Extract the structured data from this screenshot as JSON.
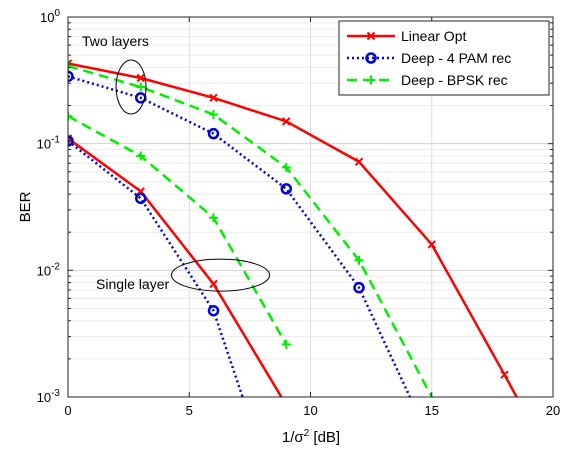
{
  "chart_data": {
    "type": "line",
    "xlabel": "1/σ² [dB]",
    "xlabel_parts": {
      "prefix": "1/σ",
      "sup": "2",
      "suffix": " [dB]"
    },
    "ylabel": "BER",
    "xlim": [
      0,
      20
    ],
    "ylim": [
      0.001,
      1
    ],
    "yscale": "log",
    "grid": true,
    "legend_position": "top-right",
    "x_ticks": [
      0,
      5,
      10,
      15,
      20
    ],
    "y_ticks": [
      {
        "value": 1,
        "base": "10",
        "exp": "0"
      },
      {
        "value": 0.1,
        "base": "10",
        "exp": "-1"
      },
      {
        "value": 0.01,
        "base": "10",
        "exp": "-2"
      },
      {
        "value": 0.001,
        "base": "10",
        "exp": "-3"
      }
    ],
    "series": [
      {
        "name": "Linear Opt",
        "color": "#ff0000",
        "style": "solid",
        "marker": "x",
        "legend": true,
        "x": [
          0,
          3,
          6,
          9,
          12,
          15,
          18,
          18.5
        ],
        "y": [
          0.43,
          0.33,
          0.23,
          0.15,
          0.072,
          0.016,
          0.0015,
          0.001
        ]
      },
      {
        "name": "Deep - 4 PAM rec",
        "color": "#0000dd",
        "style": "dotted",
        "marker": "o",
        "legend": true,
        "x": [
          0,
          3,
          6,
          9,
          12,
          14.1
        ],
        "y": [
          0.34,
          0.23,
          0.12,
          0.044,
          0.0073,
          0.001
        ]
      },
      {
        "name": "Deep - BPSK rec",
        "color": "#00ee00",
        "style": "dashed",
        "marker": "+",
        "legend": true,
        "x": [
          0,
          3,
          6,
          9,
          12,
          15
        ],
        "y": [
          0.41,
          0.28,
          0.17,
          0.065,
          0.012,
          0.001
        ]
      },
      {
        "name": "Linear Opt",
        "color": "#ff0000",
        "style": "solid",
        "marker": "x",
        "legend": false,
        "x": [
          0,
          3,
          6,
          8.8
        ],
        "y": [
          0.11,
          0.042,
          0.0078,
          0.001
        ]
      },
      {
        "name": "Deep - 4 PAM rec",
        "color": "#0000dd",
        "style": "dotted",
        "marker": "o",
        "legend": false,
        "x": [
          0,
          3,
          6,
          7.2
        ],
        "y": [
          0.105,
          0.037,
          0.0048,
          0.001
        ]
      },
      {
        "name": "Deep - BPSK rec",
        "color": "#00ee00",
        "style": "dashed",
        "marker": "+",
        "legend": false,
        "x": [
          0,
          3,
          6,
          9
        ],
        "y": [
          0.165,
          0.08,
          0.026,
          0.0026
        ]
      }
    ],
    "annotations": [
      {
        "text": "Two layers",
        "ellipse_center": [
          2.6,
          0.28
        ]
      },
      {
        "text": "Single layer",
        "ellipse_center": [
          6,
          0.009
        ]
      }
    ]
  }
}
